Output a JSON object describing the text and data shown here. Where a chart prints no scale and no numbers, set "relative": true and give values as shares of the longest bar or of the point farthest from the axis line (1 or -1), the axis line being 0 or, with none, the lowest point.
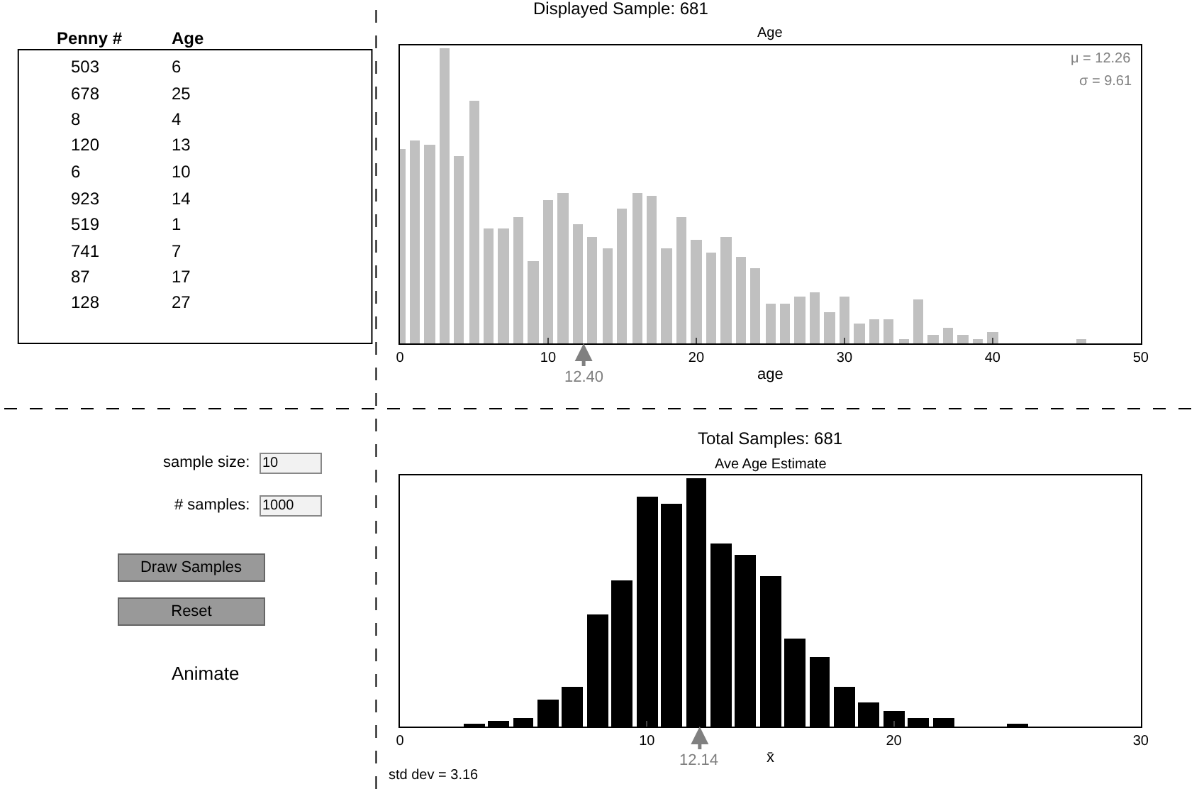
{
  "chart_data": [
    {
      "type": "other",
      "annotations": [
        "Penny #",
        "Age",
        "503",
        "6",
        "678",
        "25",
        "8",
        "4",
        "120",
        "13",
        "6",
        "10",
        "923",
        "14",
        "519",
        "1",
        "741",
        "7",
        "87",
        "17",
        "128",
        "27"
      ]
    },
    {
      "type": "bar",
      "title": "Displayed Sample: 681",
      "subtitle": "Age",
      "xlabel": "age",
      "relative": true,
      "color": "#c0c0c0",
      "xlim": [
        0,
        50
      ],
      "xticks": [
        0,
        10,
        20,
        30,
        40,
        50
      ],
      "x": [
        0,
        1,
        2,
        3,
        4,
        5,
        6,
        7,
        8,
        9,
        10,
        11,
        12,
        13,
        14,
        15,
        16,
        17,
        18,
        19,
        20,
        21,
        22,
        23,
        24,
        25,
        26,
        27,
        28,
        29,
        30,
        31,
        32,
        33,
        34,
        35,
        36,
        37,
        38,
        39,
        40,
        46
      ],
      "values": [
        0.66,
        0.69,
        0.675,
        1.0,
        0.634,
        0.823,
        0.39,
        0.39,
        0.43,
        0.28,
        0.484,
        0.512,
        0.404,
        0.362,
        0.323,
        0.457,
        0.512,
        0.5,
        0.323,
        0.43,
        0.35,
        0.31,
        0.362,
        0.295,
        0.256,
        0.134,
        0.134,
        0.16,
        0.175,
        0.108,
        0.16,
        0.067,
        0.08,
        0.08,
        0.014,
        0.148,
        0.028,
        0.053,
        0.028,
        0.014,
        0.04,
        0.014
      ],
      "annotations": [
        "μ = 12.26",
        "σ = 9.61",
        {
          "text": "12.40",
          "x": 12.4,
          "y": 0
        }
      ]
    },
    {
      "type": "bar",
      "title": "Total Samples: 681",
      "subtitle": "Ave Age Estimate",
      "xlabel": "x̄",
      "relative": true,
      "color": "#000000",
      "xlim": [
        0,
        30
      ],
      "xticks": [
        0,
        10,
        20,
        30
      ],
      "x": [
        3,
        4,
        5,
        6,
        7,
        8,
        9,
        10,
        11,
        12,
        13,
        14,
        15,
        16,
        17,
        18,
        19,
        20,
        21,
        22,
        25
      ],
      "values": [
        0.012,
        0.025,
        0.037,
        0.108,
        0.161,
        0.449,
        0.585,
        0.926,
        0.895,
        1.0,
        0.734,
        0.69,
        0.607,
        0.353,
        0.279,
        0.161,
        0.096,
        0.065,
        0.037,
        0.037,
        0.012
      ],
      "annotations": [
        {
          "text": "12.14",
          "x": 12.14,
          "y": 0
        },
        "std dev = 3.16"
      ]
    },
    {
      "type": "other",
      "annotations": [
        "sample size:",
        "10",
        "# samples:",
        "1000",
        "Draw Samples",
        "Reset",
        "Animate"
      ]
    }
  ]
}
